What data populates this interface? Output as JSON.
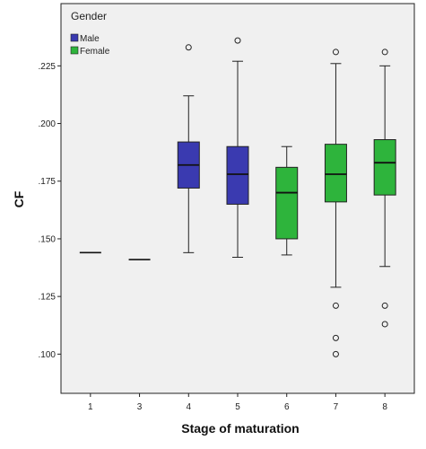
{
  "chart_data": {
    "type": "boxplot",
    "xlabel": "Stage of maturation",
    "ylabel": "CF",
    "categories": [
      "1",
      "3",
      "4",
      "5",
      "6",
      "7",
      "8"
    ],
    "ylim": [
      0.083,
      0.252
    ],
    "yticks": [
      ".100",
      ".125",
      ".150",
      ".175",
      ".200",
      ".225"
    ],
    "ytick_values": [
      0.1,
      0.125,
      0.15,
      0.175,
      0.2,
      0.225
    ],
    "legend": {
      "title": "Gender",
      "placement": "top-left",
      "entries": [
        {
          "label": "Male",
          "color": "#3a3ab0"
        },
        {
          "label": "Female",
          "color": "#2eb43c"
        }
      ]
    },
    "boxes": [
      {
        "category": "1",
        "group": "Male",
        "min": 0.144,
        "q1": 0.144,
        "median": 0.144,
        "q3": 0.144,
        "max": 0.144,
        "outliers": []
      },
      {
        "category": "3",
        "group": "Male",
        "min": 0.141,
        "q1": 0.141,
        "median": 0.141,
        "q3": 0.141,
        "max": 0.141,
        "outliers": []
      },
      {
        "category": "4",
        "group": "Male",
        "min": 0.144,
        "q1": 0.172,
        "median": 0.182,
        "q3": 0.192,
        "max": 0.212,
        "outliers": [
          0.233
        ]
      },
      {
        "category": "5",
        "group": "Male",
        "min": 0.142,
        "q1": 0.165,
        "median": 0.178,
        "q3": 0.19,
        "max": 0.227,
        "outliers": [
          0.236
        ]
      },
      {
        "category": "6",
        "group": "Female",
        "min": 0.143,
        "q1": 0.15,
        "median": 0.17,
        "q3": 0.181,
        "max": 0.19,
        "outliers": []
      },
      {
        "category": "7",
        "group": "Female",
        "min": 0.129,
        "q1": 0.166,
        "median": 0.178,
        "q3": 0.191,
        "max": 0.226,
        "outliers": [
          0.231,
          0.121,
          0.107,
          0.1
        ]
      },
      {
        "category": "8",
        "group": "Female",
        "min": 0.138,
        "q1": 0.169,
        "median": 0.183,
        "q3": 0.193,
        "max": 0.225,
        "outliers": [
          0.231,
          0.121,
          0.113
        ]
      }
    ],
    "grid": false,
    "colors": {
      "background": "#f0f0f0",
      "male": "#3a3ab0",
      "female": "#2eb43c"
    }
  }
}
